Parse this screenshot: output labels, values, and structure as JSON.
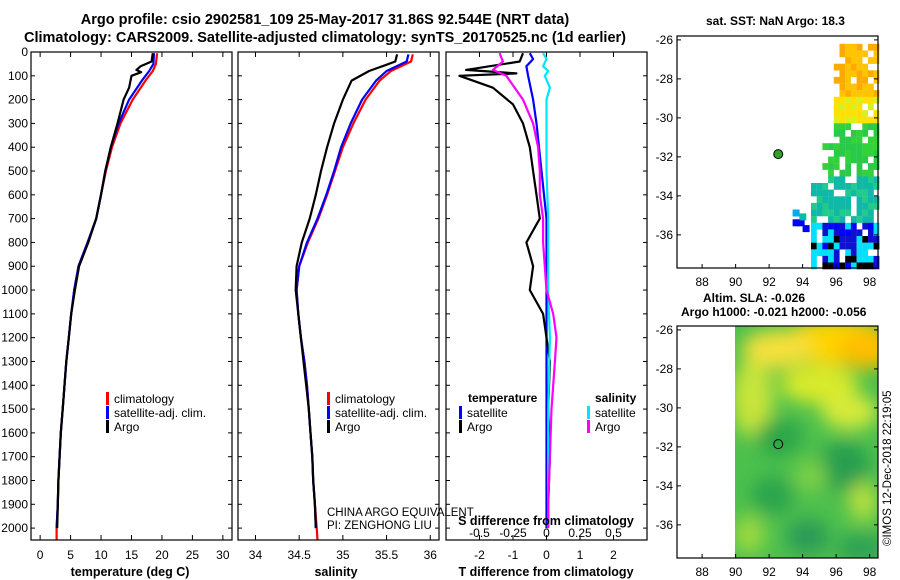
{
  "header": {
    "title_line1": "Argo profile: csio 2902581_109 25-May-2017 31.86S 92.544E (NRT data)",
    "title_line2": "Climatology: CARS2009. Satellite-adjusted climatology: synTS_20170525.nc (1d earlier)"
  },
  "colors": {
    "climatology": "#ff0000",
    "satellite": "#0000ff",
    "argo": "#000000",
    "sat_salinity": "#00e5ff",
    "argo_salinity": "#ff00ff"
  },
  "chart_data": [
    {
      "type": "line",
      "id": "temperature-profile",
      "xlabel": "temperature (deg C)",
      "xlim": [
        -1.5,
        31.5
      ],
      "ylim": [
        0,
        2050
      ],
      "xticks": [
        "0",
        "5",
        "10",
        "15",
        "20",
        "25",
        "30"
      ],
      "yticks": [
        "0",
        "100",
        "200",
        "300",
        "400",
        "500",
        "600",
        "700",
        "800",
        "900",
        "1000",
        "1100",
        "1200",
        "1300",
        "1400",
        "1500",
        "1600",
        "1700",
        "1800",
        "1900",
        "2000"
      ],
      "legend": [
        "climatology",
        "satellite-adj. clim.",
        "Argo"
      ],
      "series": [
        {
          "name": "climatology",
          "color": "#ff0000",
          "points": [
            [
              19.2,
              5
            ],
            [
              19.0,
              50
            ],
            [
              18.5,
              80
            ],
            [
              17.3,
              120
            ],
            [
              15.2,
              200
            ],
            [
              13.2,
              300
            ],
            [
              11.8,
              400
            ],
            [
              10.8,
              500
            ],
            [
              10.0,
              600
            ],
            [
              9.2,
              700
            ],
            [
              7.8,
              800
            ],
            [
              6.3,
              900
            ],
            [
              5.6,
              1000
            ],
            [
              5.1,
              1100
            ],
            [
              4.7,
              1200
            ],
            [
              4.3,
              1300
            ],
            [
              4.0,
              1400
            ],
            [
              3.7,
              1500
            ],
            [
              3.4,
              1600
            ],
            [
              3.2,
              1700
            ],
            [
              3.0,
              1800
            ],
            [
              2.9,
              1900
            ],
            [
              2.7,
              2000
            ],
            [
              2.7,
              2050
            ]
          ]
        },
        {
          "name": "satellite-adj. clim.",
          "color": "#0000ff",
          "points": [
            [
              18.7,
              5
            ],
            [
              18.6,
              50
            ],
            [
              17.9,
              80
            ],
            [
              16.7,
              120
            ],
            [
              14.6,
              200
            ],
            [
              12.9,
              300
            ],
            [
              11.6,
              400
            ],
            [
              10.7,
              500
            ],
            [
              10.0,
              600
            ],
            [
              9.2,
              700
            ],
            [
              7.8,
              800
            ],
            [
              6.3,
              900
            ],
            [
              5.6,
              1000
            ],
            [
              5.1,
              1100
            ],
            [
              4.7,
              1200
            ],
            [
              4.3,
              1300
            ],
            [
              4.0,
              1400
            ],
            [
              3.7,
              1500
            ],
            [
              3.4,
              1600
            ],
            [
              3.2,
              1700
            ],
            [
              3.0,
              1800
            ],
            [
              2.9,
              1900
            ],
            [
              2.7,
              2000
            ]
          ]
        },
        {
          "name": "Argo",
          "color": "#000000",
          "points": [
            [
              18.5,
              5
            ],
            [
              18.3,
              40
            ],
            [
              16.5,
              60
            ],
            [
              15.8,
              75
            ],
            [
              16.6,
              85
            ],
            [
              15.0,
              100
            ],
            [
              14.6,
              150
            ],
            [
              13.7,
              200
            ],
            [
              12.7,
              300
            ],
            [
              11.6,
              400
            ],
            [
              10.7,
              500
            ],
            [
              10.0,
              600
            ],
            [
              9.2,
              700
            ],
            [
              7.9,
              800
            ],
            [
              6.4,
              900
            ],
            [
              5.7,
              1000
            ],
            [
              5.1,
              1100
            ],
            [
              4.7,
              1200
            ],
            [
              4.3,
              1300
            ],
            [
              4.0,
              1400
            ],
            [
              3.7,
              1500
            ],
            [
              3.4,
              1600
            ],
            [
              3.2,
              1700
            ],
            [
              3.0,
              1800
            ],
            [
              2.9,
              1900
            ],
            [
              2.8,
              2000
            ]
          ]
        }
      ]
    },
    {
      "type": "line",
      "id": "salinity-profile",
      "xlabel": "salinity",
      "xlim": [
        33.8,
        36.1
      ],
      "ylim": [
        0,
        2050
      ],
      "xticks": [
        "34",
        "34.5",
        "35",
        "35.5",
        "36"
      ],
      "legend": [
        "climatology",
        "satellite-adj. clim.",
        "Argo"
      ],
      "annotation": [
        "CHINA ARGO EQUIVALENT",
        "PI: ZENGHONG LIU"
      ],
      "series": [
        {
          "name": "climatology",
          "color": "#ff0000",
          "points": [
            [
              35.8,
              10
            ],
            [
              35.78,
              40
            ],
            [
              35.55,
              80
            ],
            [
              35.42,
              120
            ],
            [
              35.26,
              200
            ],
            [
              35.12,
              300
            ],
            [
              35.0,
              400
            ],
            [
              34.91,
              500
            ],
            [
              34.82,
              600
            ],
            [
              34.72,
              700
            ],
            [
              34.6,
              800
            ],
            [
              34.5,
              900
            ],
            [
              34.47,
              1000
            ],
            [
              34.49,
              1100
            ],
            [
              34.52,
              1200
            ],
            [
              34.56,
              1300
            ],
            [
              34.59,
              1400
            ],
            [
              34.61,
              1500
            ],
            [
              34.63,
              1600
            ],
            [
              34.65,
              1700
            ],
            [
              34.66,
              1800
            ],
            [
              34.68,
              1900
            ],
            [
              34.7,
              2000
            ],
            [
              34.71,
              2050
            ]
          ]
        },
        {
          "name": "satellite-adj. clim.",
          "color": "#0000ff",
          "points": [
            [
              35.75,
              10
            ],
            [
              35.73,
              40
            ],
            [
              35.5,
              80
            ],
            [
              35.38,
              120
            ],
            [
              35.22,
              200
            ],
            [
              35.09,
              300
            ],
            [
              34.98,
              400
            ],
            [
              34.9,
              500
            ],
            [
              34.81,
              600
            ],
            [
              34.71,
              700
            ],
            [
              34.59,
              800
            ],
            [
              34.5,
              900
            ],
            [
              34.47,
              1000
            ],
            [
              34.49,
              1100
            ],
            [
              34.52,
              1200
            ],
            [
              34.56,
              1300
            ],
            [
              34.59,
              1400
            ],
            [
              34.61,
              1500
            ],
            [
              34.63,
              1600
            ],
            [
              34.65,
              1700
            ],
            [
              34.66,
              1800
            ],
            [
              34.68,
              1900
            ],
            [
              34.69,
              2000
            ]
          ]
        },
        {
          "name": "Argo",
          "color": "#000000",
          "points": [
            [
              35.62,
              10
            ],
            [
              35.6,
              40
            ],
            [
              35.45,
              60
            ],
            [
              35.3,
              80
            ],
            [
              35.1,
              120
            ],
            [
              35.0,
              200
            ],
            [
              34.9,
              300
            ],
            [
              34.82,
              400
            ],
            [
              34.75,
              500
            ],
            [
              34.69,
              600
            ],
            [
              34.62,
              700
            ],
            [
              34.53,
              800
            ],
            [
              34.47,
              900
            ],
            [
              34.46,
              1000
            ],
            [
              34.49,
              1100
            ],
            [
              34.52,
              1200
            ],
            [
              34.55,
              1300
            ],
            [
              34.58,
              1400
            ],
            [
              34.61,
              1500
            ],
            [
              34.63,
              1600
            ],
            [
              34.65,
              1700
            ],
            [
              34.66,
              1800
            ],
            [
              34.68,
              1900
            ],
            [
              34.69,
              2000
            ]
          ]
        }
      ]
    },
    {
      "type": "line",
      "id": "difference-profile",
      "xlabel": "T difference from climatology",
      "top_xlabel": "S difference from climatology",
      "xlim": [
        -3.0,
        3.0
      ],
      "ylim": [
        0,
        2050
      ],
      "xticks": [
        "-2",
        "-1",
        "0",
        "1",
        "2"
      ],
      "top_xticks": [
        "-0.5",
        "-0.25",
        "0",
        "0.25",
        "0.5"
      ],
      "legend_temperature_title": "temperature",
      "legend_salinity_title": "salinity",
      "legend_temperature": [
        "satellite",
        "Argo"
      ],
      "legend_salinity": [
        "satellite",
        "Argo"
      ],
      "series": [
        {
          "name": "T satellite",
          "color": "#0000ff",
          "points": [
            [
              -0.5,
              5
            ],
            [
              -0.4,
              30
            ],
            [
              -0.6,
              60
            ],
            [
              -0.55,
              100
            ],
            [
              -0.4,
              200
            ],
            [
              -0.3,
              300
            ],
            [
              -0.15,
              500
            ],
            [
              0,
              700
            ],
            [
              0,
              1000
            ],
            [
              0,
              1500
            ],
            [
              0,
              1800
            ],
            [
              0,
              2000
            ]
          ]
        },
        {
          "name": "T Argo",
          "color": "#000000",
          "points": [
            [
              -0.7,
              5
            ],
            [
              -0.8,
              40
            ],
            [
              -2.4,
              75
            ],
            [
              -0.9,
              90
            ],
            [
              -2.6,
              100
            ],
            [
              -1.6,
              150
            ],
            [
              -1.0,
              220
            ],
            [
              -0.7,
              300
            ],
            [
              -0.5,
              400
            ],
            [
              -0.4,
              500
            ],
            [
              -0.3,
              600
            ],
            [
              -0.2,
              700
            ],
            [
              -0.6,
              800
            ],
            [
              -0.5,
              850
            ],
            [
              -0.4,
              900
            ],
            [
              -0.5,
              1000
            ],
            [
              -0.1,
              1100
            ],
            [
              0.1,
              1300
            ],
            [
              0.05,
              1500
            ],
            [
              0.1,
              1700
            ],
            [
              0.05,
              1900
            ],
            [
              0.05,
              2000
            ]
          ]
        },
        {
          "name": "S satellite",
          "color": "#00e5ff",
          "points": [
            [
              -0.1,
              5
            ],
            [
              0,
              30
            ],
            [
              -0.1,
              60
            ],
            [
              0.05,
              80
            ],
            [
              -0.05,
              100
            ],
            [
              0.1,
              150
            ],
            [
              0,
              200
            ],
            [
              0,
              500
            ],
            [
              0.05,
              700
            ],
            [
              0.05,
              1000
            ],
            [
              0.1,
              1200
            ],
            [
              0.05,
              1500
            ],
            [
              0.05,
              1800
            ],
            [
              0.05,
              2000
            ]
          ]
        },
        {
          "name": "S Argo",
          "color": "#ff00ff",
          "points": [
            [
              -1.4,
              5
            ],
            [
              -1.3,
              40
            ],
            [
              -1.6,
              75
            ],
            [
              -1.2,
              100
            ],
            [
              -0.7,
              200
            ],
            [
              -0.4,
              300
            ],
            [
              -0.25,
              400
            ],
            [
              -0.2,
              500
            ],
            [
              -0.2,
              600
            ],
            [
              -0.1,
              700
            ],
            [
              -0.1,
              800
            ],
            [
              -0.05,
              900
            ],
            [
              0,
              1000
            ],
            [
              0.2,
              1100
            ],
            [
              0.3,
              1200
            ],
            [
              0.25,
              1300
            ],
            [
              0.2,
              1400
            ],
            [
              0.15,
              1500
            ],
            [
              0.1,
              1700
            ],
            [
              0.05,
              1900
            ],
            [
              0.05,
              2000
            ]
          ]
        }
      ]
    }
  ],
  "sst_map": {
    "title": "sat. SST: NaN Argo: 18.3",
    "xticks": [
      "88",
      "90",
      "92",
      "94",
      "96",
      "98"
    ],
    "yticks": [
      "-26",
      "-28",
      "-30",
      "-32",
      "-34",
      "-36"
    ],
    "xlim": [
      86.5,
      98.5
    ],
    "ylim": [
      -37.7,
      -25.8
    ],
    "argo_lon": 92.544,
    "argo_lat": -31.86
  },
  "sla_map": {
    "title_line1": "Altim. SLA: -0.026",
    "title_line2": "Argo h1000: -0.021 h2000: -0.056",
    "xticks": [
      "88",
      "90",
      "92",
      "94",
      "96",
      "98"
    ],
    "yticks": [
      "-26",
      "-28",
      "-30",
      "-32",
      "-34",
      "-36"
    ],
    "xlim": [
      86.5,
      98.5
    ],
    "ylim": [
      -37.7,
      -25.8
    ],
    "argo_lon": 92.544,
    "argo_lat": -31.86
  },
  "footer": {
    "stamp": "©IMOS 12-Dec-2018 22:19:05"
  }
}
